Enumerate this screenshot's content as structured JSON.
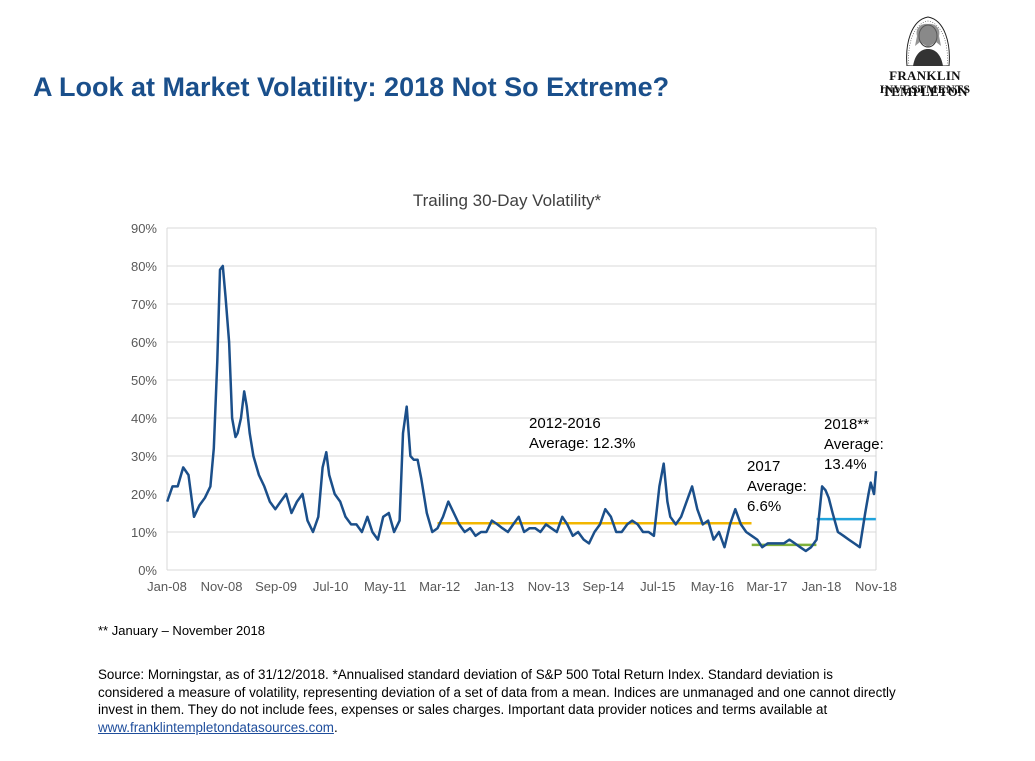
{
  "page_title": "A Look at Market Volatility: 2018 Not So Extreme?",
  "logo": {
    "line1": "FRANKLIN TEMPLETON",
    "line2": "INVESTMENTS"
  },
  "footnote": "** January – November 2018",
  "source": {
    "text": "Source: Morningstar, as of 31/12/2018. *Annualised standard deviation of S&P 500 Total Return Index. Standard deviation is considered a measure of volatility, representing deviation of a set of data from a mean. Indices are unmanaged and one cannot directly invest in them. They do not include fees, expenses or sales charges. Important data provider notices and terms available at ",
    "link_text": "www.franklintempletondatasources.com",
    "end": "."
  },
  "colors": {
    "title": "#1a4f8b",
    "series": "#1b4f8a",
    "avg_2012_2016": "#f2b600",
    "avg_2017": "#7fb13c",
    "avg_2018": "#1fa3dc",
    "grid": "#d9d9d9",
    "link": "#1f4e9c"
  },
  "chart_data": {
    "type": "line",
    "title": "Trailing 30-Day Volatility*",
    "xlabel": "",
    "ylabel": "",
    "ylim": [
      0,
      90
    ],
    "y_unit": "%",
    "y_ticks": [
      "0%",
      "10%",
      "20%",
      "30%",
      "40%",
      "50%",
      "60%",
      "70%",
      "80%",
      "90%"
    ],
    "x_ticks": [
      "Jan-08",
      "Nov-08",
      "Sep-09",
      "Jul-10",
      "May-11",
      "Mar-12",
      "Jan-13",
      "Nov-13",
      "Sep-14",
      "Jul-15",
      "May-16",
      "Mar-17",
      "Jan-18",
      "Nov-18"
    ],
    "x_range": [
      "2008-01",
      "2018-12"
    ],
    "grid": "horizontal",
    "series": [
      {
        "x": [
          "2008-01-02",
          "2008-02-01",
          "2008-03-01",
          "2008-04-01",
          "2008-05-01",
          "2008-06-01",
          "2008-07-01",
          "2008-08-01",
          "2008-09-01",
          "2008-09-20",
          "2008-10-10",
          "2008-10-25",
          "2008-11-10",
          "2008-11-25",
          "2008-12-15",
          "2009-01-01",
          "2009-01-20",
          "2009-02-01",
          "2009-02-20",
          "2009-03-10",
          "2009-03-25",
          "2009-04-10",
          "2009-05-01",
          "2009-06-01",
          "2009-07-01",
          "2009-08-01",
          "2009-09-01",
          "2009-10-01",
          "2009-11-01",
          "2009-12-01",
          "2010-01-01",
          "2010-02-01",
          "2010-03-01",
          "2010-04-01",
          "2010-05-01",
          "2010-05-25",
          "2010-06-15",
          "2010-07-01",
          "2010-08-01",
          "2010-09-01",
          "2010-10-01",
          "2010-11-01",
          "2010-12-01",
          "2011-01-01",
          "2011-02-01",
          "2011-03-01",
          "2011-04-01",
          "2011-05-01",
          "2011-06-01",
          "2011-07-01",
          "2011-08-01",
          "2011-08-20",
          "2011-09-10",
          "2011-10-01",
          "2011-10-20",
          "2011-11-10",
          "2011-12-01",
          "2012-01-01",
          "2012-02-01",
          "2012-03-01",
          "2012-04-01",
          "2012-05-01",
          "2012-06-01",
          "2012-07-01",
          "2012-08-01",
          "2012-09-01",
          "2012-10-01",
          "2012-11-01",
          "2012-12-01",
          "2013-01-01",
          "2013-02-01",
          "2013-03-01",
          "2013-04-01",
          "2013-05-01",
          "2013-06-01",
          "2013-07-01",
          "2013-08-01",
          "2013-09-01",
          "2013-10-01",
          "2013-11-01",
          "2013-12-01",
          "2014-01-01",
          "2014-02-01",
          "2014-03-01",
          "2014-04-01",
          "2014-05-01",
          "2014-06-01",
          "2014-07-01",
          "2014-08-01",
          "2014-09-01",
          "2014-10-01",
          "2014-11-01",
          "2014-12-01",
          "2015-01-01",
          "2015-02-01",
          "2015-03-01",
          "2015-04-01",
          "2015-05-01",
          "2015-06-01",
          "2015-07-01",
          "2015-08-01",
          "2015-08-25",
          "2015-09-15",
          "2015-10-01",
          "2015-11-01",
          "2015-12-01",
          "2016-01-01",
          "2016-02-01",
          "2016-03-01",
          "2016-04-01",
          "2016-05-01",
          "2016-06-01",
          "2016-07-01",
          "2016-08-01",
          "2016-09-01",
          "2016-10-01",
          "2016-11-01",
          "2016-12-01",
          "2017-01-01",
          "2017-02-01",
          "2017-03-01",
          "2017-04-01",
          "2017-05-01",
          "2017-06-01",
          "2017-07-01",
          "2017-08-01",
          "2017-09-01",
          "2017-10-01",
          "2017-11-01",
          "2017-12-01",
          "2018-01-01",
          "2018-02-01",
          "2018-02-20",
          "2018-03-10",
          "2018-04-01",
          "2018-05-01",
          "2018-06-01",
          "2018-07-01",
          "2018-08-01",
          "2018-09-01",
          "2018-10-01",
          "2018-10-20",
          "2018-11-01",
          "2018-11-20",
          "2018-12-01"
        ],
        "y": [
          18,
          22,
          22,
          27,
          25,
          14,
          17,
          19,
          22,
          32,
          55,
          79,
          80,
          72,
          60,
          40,
          35,
          36,
          40,
          47,
          43,
          36,
          30,
          25,
          22,
          18,
          16,
          18,
          20,
          15,
          18,
          20,
          13,
          10,
          14,
          27,
          31,
          25,
          20,
          18,
          14,
          12,
          12,
          10,
          14,
          10,
          8,
          14,
          15,
          10,
          13,
          36,
          43,
          30,
          29,
          29,
          24,
          15,
          10,
          11,
          14,
          18,
          15,
          12,
          10,
          11,
          9,
          10,
          10,
          13,
          12,
          11,
          10,
          12,
          14,
          10,
          11,
          11,
          10,
          12,
          11,
          10,
          14,
          12,
          9,
          10,
          8,
          7,
          10,
          12,
          16,
          14,
          10,
          10,
          12,
          13,
          12,
          10,
          10,
          9,
          22,
          28,
          18,
          14,
          12,
          14,
          18,
          22,
          16,
          12,
          13,
          8,
          10,
          6,
          12,
          16,
          12,
          10,
          9,
          8,
          6,
          7,
          7,
          7,
          7,
          8,
          7,
          6,
          5,
          6,
          8,
          22,
          21,
          19,
          15,
          10,
          9,
          8,
          7,
          6,
          15,
          20,
          23,
          20,
          26
        ]
      }
    ],
    "averages": [
      {
        "label_line1": "2012-2016",
        "label_line2": "Average: 12.3%",
        "value": 12.3,
        "x_start": "2012-03-01",
        "x_end": "2016-12-31"
      },
      {
        "label_line1": "2017",
        "label_line2": "Average:",
        "label_line3": "6.6%",
        "value": 6.6,
        "x_start": "2017-01-01",
        "x_end": "2017-12-31"
      },
      {
        "label_line1": "2018**",
        "label_line2": "Average:",
        "label_line3": "13.4%",
        "value": 13.4,
        "x_start": "2018-01-01",
        "x_end": "2018-11-30"
      }
    ]
  }
}
